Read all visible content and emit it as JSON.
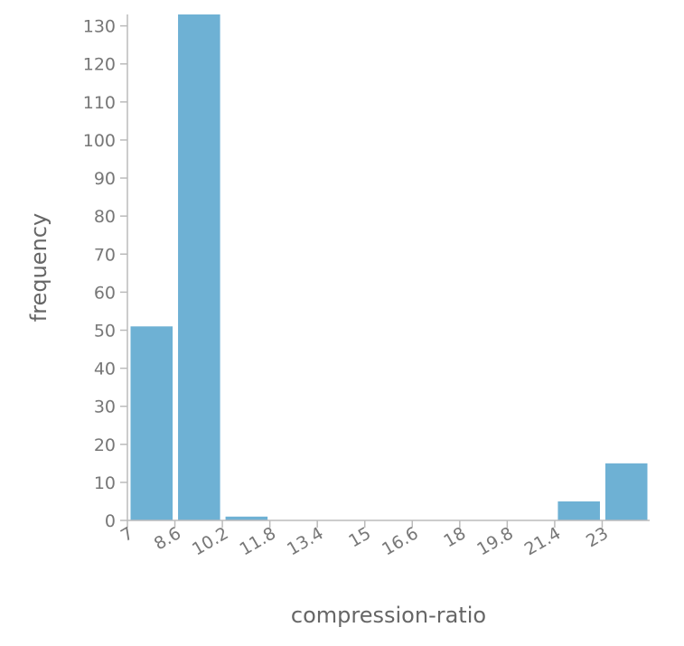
{
  "chart_data": {
    "type": "bar",
    "title": "",
    "xlabel": "compression-ratio",
    "ylabel": "frequency",
    "bin_edges": [
      7,
      8.6,
      10.2,
      11.8,
      13.4,
      15,
      16.6,
      18,
      19.8,
      21.4,
      23
    ],
    "x_tick_labels": [
      "7",
      "8.6",
      "10.2",
      "11.8",
      "13.4",
      "15",
      "16.6",
      "18",
      "19.8",
      "21.4",
      "23"
    ],
    "values": [
      51,
      133,
      1,
      0,
      0,
      0,
      0,
      0,
      0,
      5,
      15
    ],
    "y_ticks": [
      0,
      10,
      20,
      30,
      40,
      50,
      60,
      70,
      80,
      90,
      100,
      110,
      120,
      130
    ],
    "ylim": [
      0,
      133
    ],
    "grid": false,
    "bar_color": "#6eb1d4"
  }
}
